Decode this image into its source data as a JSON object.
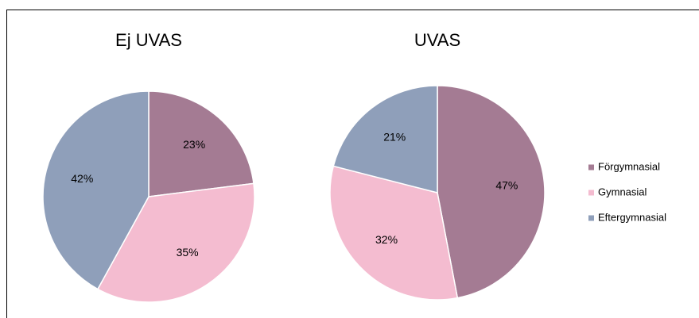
{
  "chart_data": [
    {
      "type": "pie",
      "title": "Ej UVAS",
      "categories": [
        "Förgymnasial",
        "Gymnasial",
        "Eftergymnasial"
      ],
      "values": [
        23,
        35,
        42
      ],
      "value_labels": [
        "23%",
        "35%",
        "42%"
      ],
      "colors": [
        "#a47b93",
        "#f4bcd0",
        "#8f9fba"
      ],
      "legend": "right"
    },
    {
      "type": "pie",
      "title": "UVAS",
      "categories": [
        "Förgymnasial",
        "Gymnasial",
        "Eftergymnasial"
      ],
      "values": [
        47,
        32,
        21
      ],
      "value_labels": [
        "47%",
        "32%",
        "21%"
      ],
      "colors": [
        "#a47b93",
        "#f4bcd0",
        "#8f9fba"
      ],
      "legend": "right"
    }
  ]
}
